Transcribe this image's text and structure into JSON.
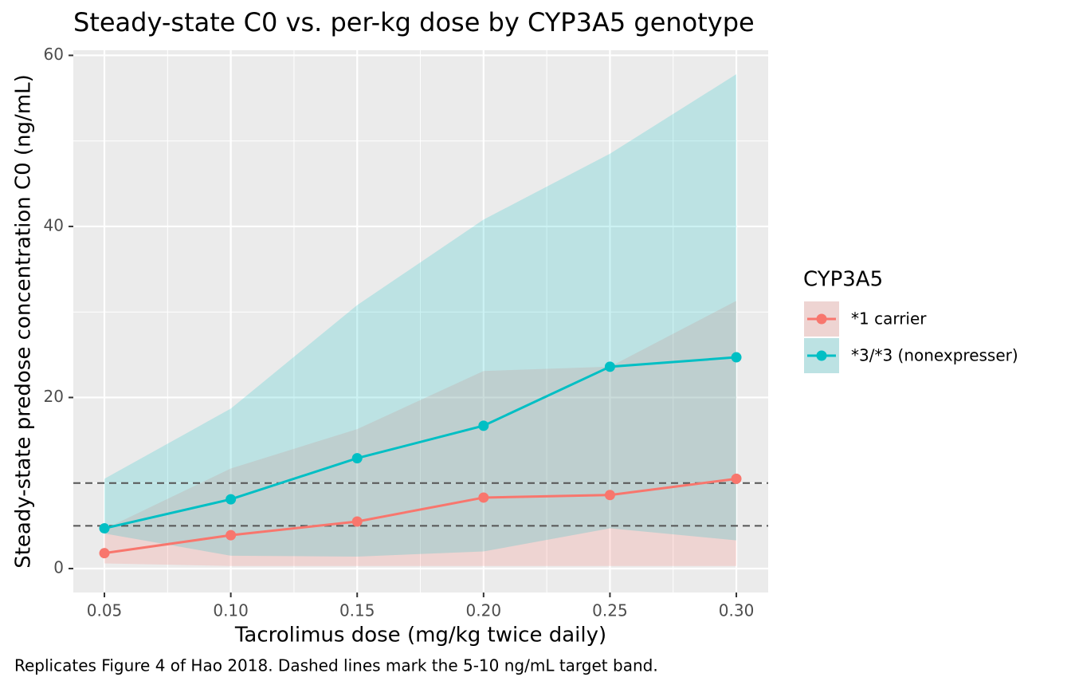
{
  "chart_data": {
    "type": "line",
    "title": "Steady-state C0 vs. per-kg dose by CYP3A5 genotype",
    "x_label": "Tacrolimus dose (mg/kg twice daily)",
    "y_label": "Steady-state predose concentration C0 (ng/mL)",
    "caption": "Replicates Figure 4 of Hao 2018. Dashed lines mark the 5-10 ng/mL target band.",
    "legend_title": "CYP3A5",
    "x": [
      0.05,
      0.1,
      0.15,
      0.2,
      0.25,
      0.3
    ],
    "series": [
      {
        "name": "*1 carrier",
        "color": "#F8766D",
        "values": [
          1.8,
          3.9,
          5.5,
          8.3,
          8.6,
          10.5
        ],
        "lower": [
          0.6,
          0.3,
          0.3,
          0.3,
          0.3,
          0.3
        ],
        "upper": [
          4.6,
          11.7,
          16.3,
          23.1,
          23.6,
          31.3
        ]
      },
      {
        "name": "*3/*3 (nonexpresser)",
        "color": "#00BFC4",
        "values": [
          4.7,
          8.1,
          12.9,
          16.7,
          23.6,
          24.7
        ],
        "lower": [
          4.1,
          1.5,
          1.4,
          2.0,
          4.7,
          3.3
        ],
        "upper": [
          10.5,
          18.7,
          30.8,
          40.8,
          48.5,
          57.8
        ]
      }
    ],
    "hlines": [
      5,
      10
    ],
    "xlim": [
      0.0377,
      0.3126
    ],
    "ylim": [
      -2.8,
      60.6
    ],
    "xticks": [
      {
        "value": 0.05,
        "label": "0.05"
      },
      {
        "value": 0.1,
        "label": "0.10"
      },
      {
        "value": 0.15,
        "label": "0.15"
      },
      {
        "value": 0.2,
        "label": "0.20"
      },
      {
        "value": 0.25,
        "label": "0.25"
      },
      {
        "value": 0.3,
        "label": "0.30"
      }
    ],
    "yticks": [
      0,
      20,
      40,
      60
    ],
    "grid": true
  }
}
